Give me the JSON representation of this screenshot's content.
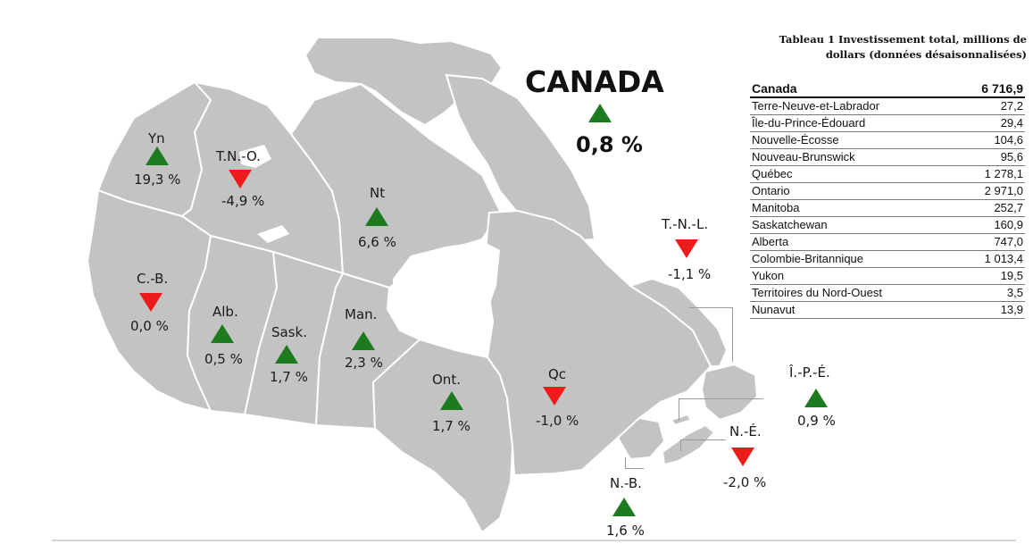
{
  "national": {
    "name": "CANADA",
    "change": "0,8 %",
    "direction": "up"
  },
  "table": {
    "title_line1": "Tableau 1 Investissement total, millions de",
    "title_line2": "dollars (données désaisonnalisées)",
    "rows": [
      {
        "name": "Canada",
        "value": "6 716,9"
      },
      {
        "name": "Terre-Neuve-et-Labrador",
        "value": "27,2"
      },
      {
        "name": "Île-du-Prince-Édouard",
        "value": "29,4"
      },
      {
        "name": "Nouvelle-Écosse",
        "value": "104,6"
      },
      {
        "name": "Nouveau-Brunswick",
        "value": "95,6"
      },
      {
        "name": "Québec",
        "value": "1 278,1"
      },
      {
        "name": "Ontario",
        "value": "2 971,0"
      },
      {
        "name": "Manitoba",
        "value": "252,7"
      },
      {
        "name": "Saskatchewan",
        "value": "160,9"
      },
      {
        "name": "Alberta",
        "value": "747,0"
      },
      {
        "name": "Colombie-Britannique",
        "value": "1 013,4"
      },
      {
        "name": "Yukon",
        "value": "19,5"
      },
      {
        "name": "Territoires du Nord-Ouest",
        "value": "3,5"
      },
      {
        "name": "Nunavut",
        "value": "13,9"
      }
    ]
  },
  "regions": [
    {
      "abbr": "Yn",
      "change": "19,3 %",
      "direction": "up"
    },
    {
      "abbr": "T.N.-O.",
      "change": "-4,9 %",
      "direction": "down"
    },
    {
      "abbr": "Nt",
      "change": "6,6 %",
      "direction": "up"
    },
    {
      "abbr": "C.-B.",
      "change": "0,0 %",
      "direction": "down"
    },
    {
      "abbr": "Alb.",
      "change": "0,5 %",
      "direction": "up"
    },
    {
      "abbr": "Sask.",
      "change": "1,7 %",
      "direction": "up"
    },
    {
      "abbr": "Man.",
      "change": "2,3 %",
      "direction": "up"
    },
    {
      "abbr": "Ont.",
      "change": "1,7 %",
      "direction": "up"
    },
    {
      "abbr": "Qc",
      "change": "-1,0 %",
      "direction": "down"
    },
    {
      "abbr": "T.-N.-L.",
      "change": "-1,1 %",
      "direction": "down"
    },
    {
      "abbr": "Î.-P.-É.",
      "change": "0,9 %",
      "direction": "up"
    },
    {
      "abbr": "N.-É.",
      "change": "-2,0 %",
      "direction": "down"
    },
    {
      "abbr": "N.-B.",
      "change": "1,6 %",
      "direction": "up"
    }
  ],
  "colors": {
    "land": "#c3c3c3",
    "up": "#1e7a1e",
    "down": "#ee1b1b"
  }
}
